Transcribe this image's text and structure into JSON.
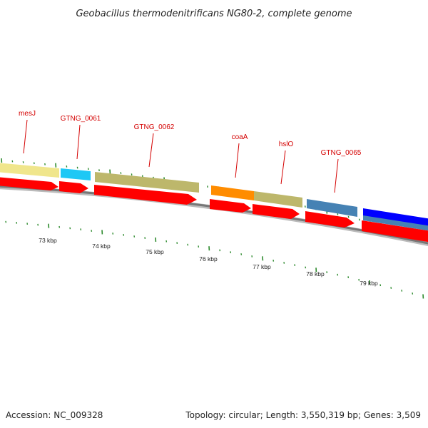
{
  "title": "Geobacillus thermodenitrificans NG80-2, complete genome",
  "footer": {
    "accession": "Accession: NC_009328",
    "summary": "Topology: circular; Length: 3,550,319 bp; Genes: 3,509"
  },
  "colors": {
    "backbone": "#777777",
    "cds_arrow": "#ff0000",
    "label": "#d40000",
    "tick": "#2e8b2e",
    "tag_light_yellow": "#f0e68c",
    "tag_sky_blue": "#1ec8f5",
    "tag_khaki": "#bdb76b",
    "tag_orange": "#ff8c00",
    "tag_steel_blue": "#4682b4",
    "tag_blue": "#0000ff"
  },
  "gene_labels": [
    {
      "text": "mesJ"
    },
    {
      "text": "GTNG_0061"
    },
    {
      "text": "GTNG_0062"
    },
    {
      "text": "coaA"
    },
    {
      "text": "hslO"
    },
    {
      "text": "GTNG_0065"
    }
  ],
  "kbp_ticks": [
    {
      "label": "73 kbp"
    },
    {
      "label": "74 kbp"
    },
    {
      "label": "75 kbp"
    },
    {
      "label": "76 kbp"
    },
    {
      "label": "77 kbp"
    },
    {
      "label": "78 kbp"
    },
    {
      "label": "79 kbp"
    }
  ]
}
